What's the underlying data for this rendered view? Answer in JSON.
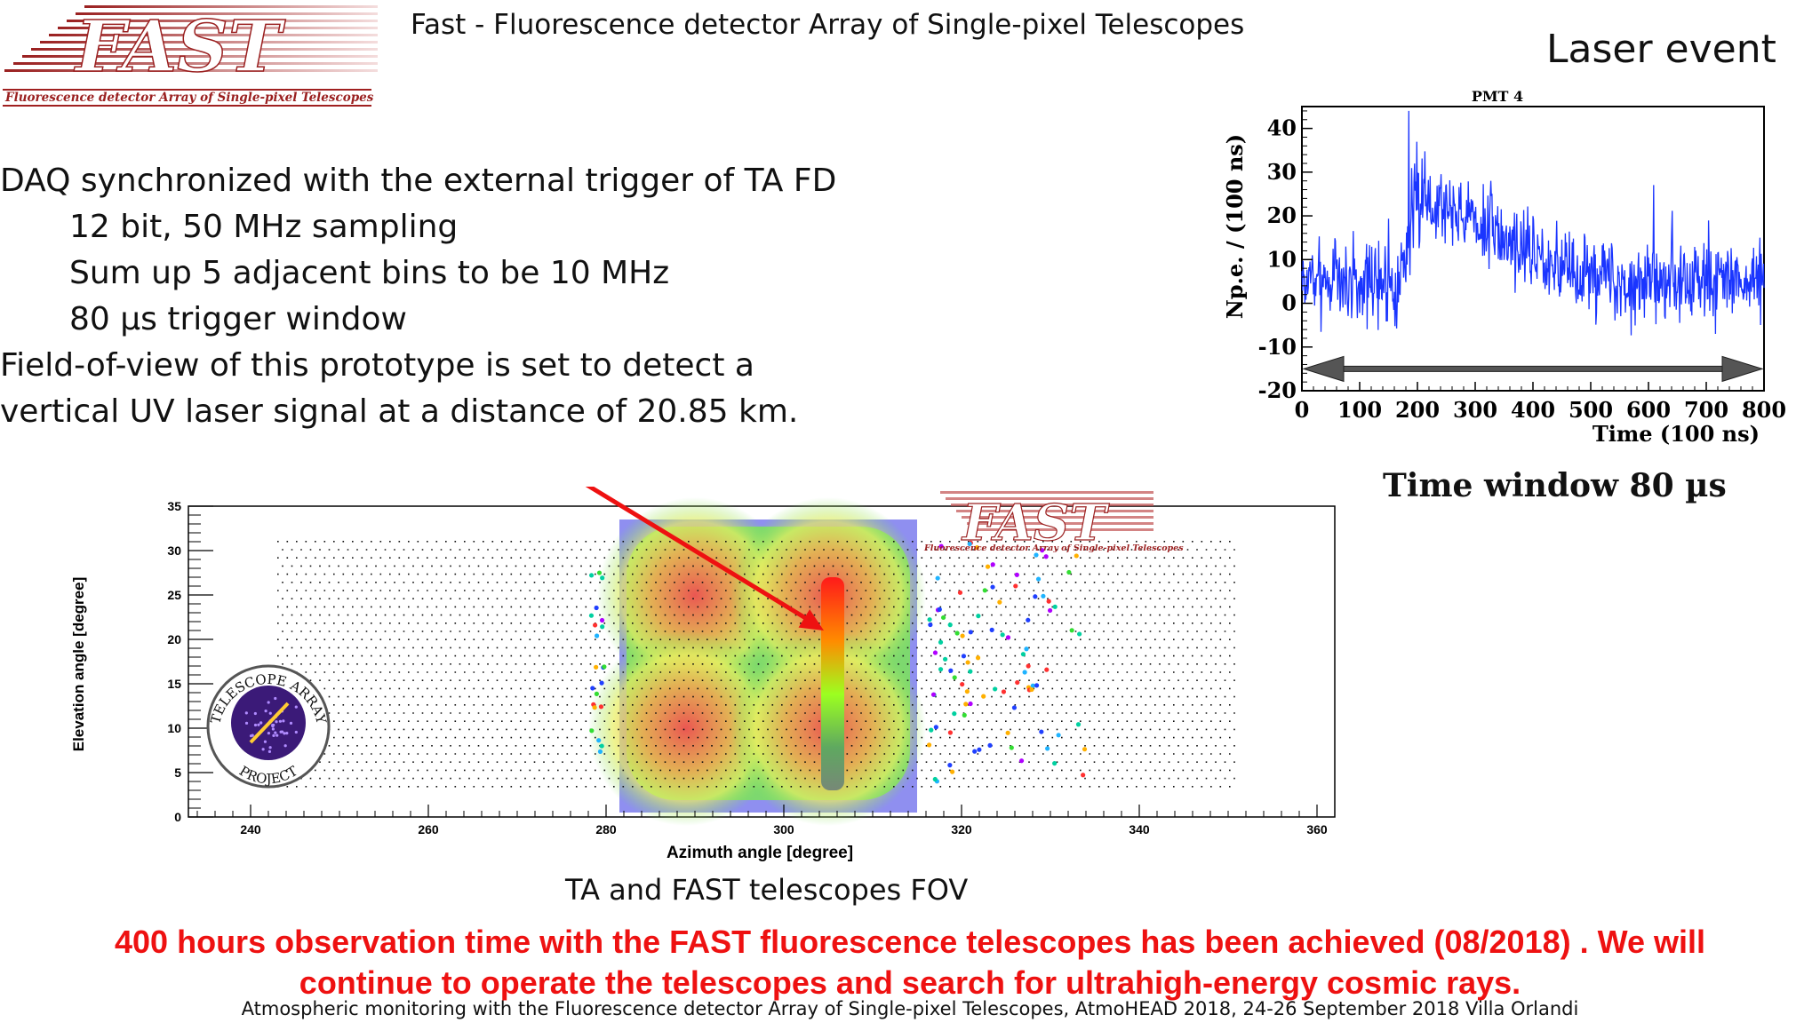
{
  "header": {
    "logo_text": "FAST",
    "logo_subtitle": "Fluorescence detector Array of Single-pixel Telescopes",
    "title": "Fast - Fluorescence detector Array of Single-pixel Telescopes",
    "event_label": "Laser event"
  },
  "bullets": [
    {
      "text": "DAQ synchronized with the external trigger of TA FD",
      "indent": false
    },
    {
      "text": "12 bit, 50 MHz sampling",
      "indent": true
    },
    {
      "text": "Sum up 5 adjacent bins to be 10 MHz",
      "indent": true
    },
    {
      "text": "80 µs trigger window",
      "indent": true
    },
    {
      "text": "Field-of-view of this prototype is set to detect a",
      "indent": false
    },
    {
      "text": "vertical UV laser signal at a distance of 20.85 km.",
      "indent": false
    }
  ],
  "pmt_chart": {
    "time_window_label": "Time window 80 µs"
  },
  "fov_chart": {
    "caption": "TA and FAST telescopes FOV",
    "ta_logo_text": "TELESCOPE ARRAY",
    "ta_logo_bottom": "PROJECT"
  },
  "conclusion": {
    "line1": "400 hours observation time with the FAST fluorescence telescopes has been achieved (08/2018) . We will",
    "line2": "continue to operate the telescopes and search for ultrahigh-energy cosmic rays."
  },
  "footer": "Atmospheric monitoring with the Fluorescence detector Array of Single-pixel Telescopes, AtmoHEAD 2018, 24-26 September 2018 Villa Orlandi",
  "chart_data": [
    {
      "type": "line",
      "title": "PMT 4",
      "xlabel": "Time (100 ns)",
      "ylabel": "Np.e. / (100 ns)",
      "xlim": [
        0,
        800
      ],
      "ylim": [
        -20,
        45
      ],
      "xticks": [
        0,
        100,
        200,
        300,
        400,
        500,
        600,
        700,
        800
      ],
      "yticks": [
        -20,
        -10,
        0,
        10,
        20,
        30,
        40
      ],
      "color": "#1a35ff",
      "baseline_noise_x": [
        [
          0,
          170
        ],
        [
          500,
          800
        ]
      ],
      "signal_envelope": {
        "x": [
          170,
          200,
          260,
          320,
          400,
          470,
          520
        ],
        "y": [
          5,
          24,
          22,
          17,
          12,
          8,
          5
        ]
      },
      "peak": {
        "x": 185,
        "y": 44
      },
      "window_arrow": {
        "x": [
          0,
          800
        ],
        "y": -15
      }
    },
    {
      "type": "scatter",
      "xlabel": "Azimuth angle [degree]",
      "ylabel": "Elevation angle [degree]",
      "xlim": [
        233,
        362
      ],
      "ylim": [
        0,
        35
      ],
      "xticks": [
        240,
        260,
        280,
        300,
        320,
        340,
        360
      ],
      "yticks": [
        0,
        5,
        10,
        15,
        20,
        25,
        30,
        35
      ],
      "ta_fov": {
        "x": [
          243,
          351
        ],
        "y": [
          3.5,
          32
        ]
      },
      "fast_fov": {
        "x": [
          281.5,
          315
        ],
        "y": [
          0.5,
          33.5
        ]
      },
      "fast_hotspots": [
        [
          290,
          25
        ],
        [
          305,
          25
        ],
        [
          289,
          10
        ],
        [
          305,
          10
        ]
      ],
      "laser_track": {
        "x": 305.5,
        "y": [
          3,
          27
        ]
      },
      "pointer_arrow": {
        "from": [
          267,
          44
        ],
        "to": [
          304.5,
          21
        ]
      }
    }
  ]
}
